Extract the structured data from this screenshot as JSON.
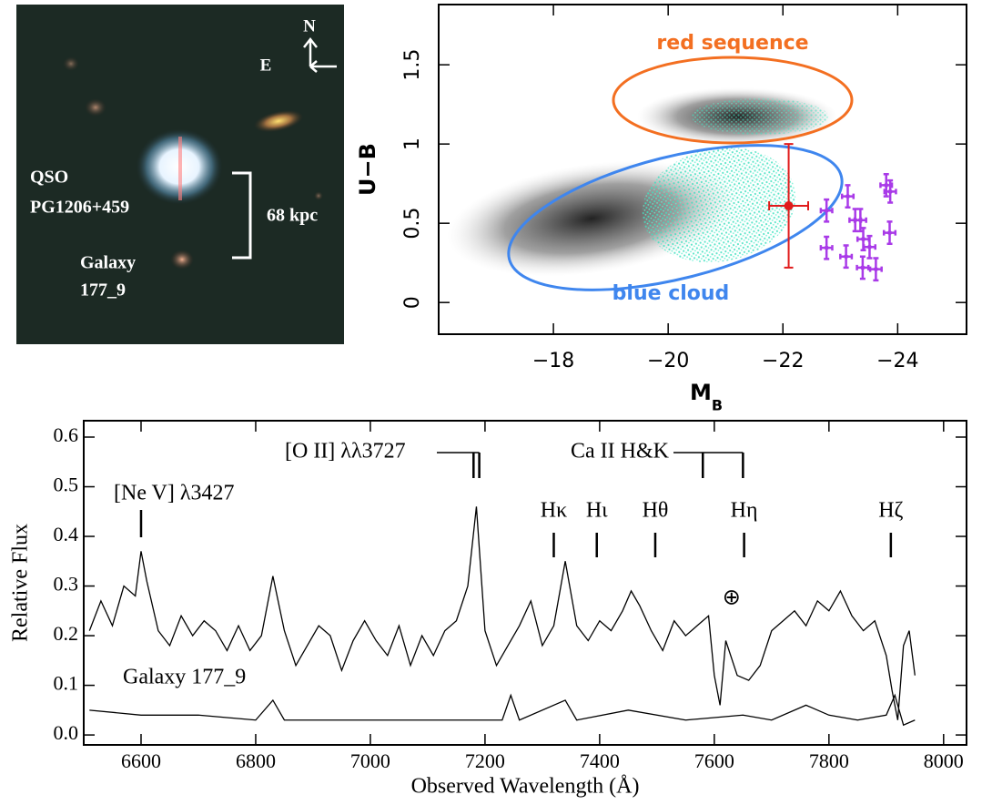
{
  "image_panel": {
    "compass_north": "N",
    "compass_east": "E",
    "qso_label": [
      "QSO",
      "PG1206+459"
    ],
    "scale_label": "68 kpc",
    "galaxy_label": [
      "Galaxy",
      "177_9"
    ]
  },
  "chart_data": [
    {
      "type": "scatter",
      "x_label": "M",
      "x_label_subscript": "B",
      "y_label": "U−B",
      "xlim": [
        -16,
        -25.2
      ],
      "ylim": [
        -0.2,
        1.88
      ],
      "xticks": [
        {
          "value": -18,
          "label": "−18"
        },
        {
          "value": -20,
          "label": "−20"
        },
        {
          "value": -22,
          "label": "−22"
        },
        {
          "value": -24,
          "label": "−24"
        }
      ],
      "yticks": [
        0,
        0.5,
        1,
        1.5
      ],
      "annotations": [
        {
          "text": "red sequence",
          "color": "#f36f21"
        },
        {
          "text": "blue cloud",
          "color": "#3f86ee"
        }
      ],
      "series": [
        {
          "color": "#e01b1b",
          "x": [
            -22.1
          ],
          "values": [
            0.61
          ],
          "xerr": [
            0.34
          ],
          "yerr": [
            0.39
          ]
        },
        {
          "color": "#a93ae8",
          "x": [
            -22.76,
            -22.76,
            -23.1,
            -23.13,
            -23.26,
            -23.35,
            -23.4,
            -23.39,
            -23.51,
            -23.62,
            -23.8,
            -23.87,
            -23.86
          ],
          "values": [
            0.58,
            0.345,
            0.29,
            0.67,
            0.52,
            0.52,
            0.4,
            0.22,
            0.35,
            0.21,
            0.74,
            0.7,
            0.44
          ],
          "xerr": [
            0.1,
            0.1,
            0.1,
            0.1,
            0.1,
            0.1,
            0.1,
            0.1,
            0.1,
            0.1,
            0.1,
            0.1,
            0.1
          ],
          "yerr": [
            0.07,
            0.07,
            0.07,
            0.07,
            0.07,
            0.07,
            0.07,
            0.07,
            0.07,
            0.07,
            0.07,
            0.07,
            0.07
          ]
        }
      ]
    },
    {
      "type": "line",
      "x_label": "Observed Wavelength (Å)",
      "y_label": "Relative Flux",
      "xlim": [
        6500,
        8040
      ],
      "ylim": [
        -0.02,
        0.633
      ],
      "xticks": [
        6600,
        6800,
        7000,
        7200,
        7400,
        7600,
        7800,
        8000
      ],
      "yticks": [
        {
          "value": 0,
          "label": "0.0"
        },
        0.1,
        0.2,
        0.3,
        0.4,
        0.5,
        0.6
      ],
      "annotations": [
        {
          "text": "[Ne V] λ3427",
          "x": 6600
        },
        {
          "text": "[O II] λλ3727",
          "x": [
            7180,
            7190
          ]
        },
        {
          "text": "Ca II H&K",
          "x": [
            7580,
            7650
          ]
        },
        {
          "text": "Hκ",
          "x": 7320
        },
        {
          "text": "Hι",
          "x": 7395
        },
        {
          "text": "Hθ",
          "x": 7497
        },
        {
          "text": "Hη",
          "x": 7652
        },
        {
          "text": "Hζ",
          "x": 7908
        },
        {
          "text": "⊕",
          "x": 7630
        }
      ],
      "series": [
        {
          "color": "#000000",
          "x": [
            6510,
            6530,
            6550,
            6570,
            6590,
            6600,
            6610,
            6630,
            6650,
            6670,
            6690,
            6710,
            6730,
            6750,
            6770,
            6790,
            6810,
            6830,
            6850,
            6870,
            6890,
            6910,
            6930,
            6950,
            6970,
            6990,
            7010,
            7030,
            7050,
            7070,
            7090,
            7110,
            7130,
            7150,
            7170,
            7185,
            7200,
            7220,
            7240,
            7260,
            7280,
            7300,
            7320,
            7340,
            7360,
            7380,
            7400,
            7420,
            7440,
            7455,
            7470,
            7490,
            7510,
            7530,
            7550,
            7570,
            7590,
            7600,
            7610,
            7620,
            7640,
            7660,
            7680,
            7700,
            7720,
            7740,
            7760,
            7780,
            7800,
            7820,
            7840,
            7860,
            7880,
            7900,
            7910,
            7920,
            7930,
            7940,
            7950
          ],
          "values": [
            0.21,
            0.27,
            0.22,
            0.3,
            0.28,
            0.37,
            0.31,
            0.21,
            0.18,
            0.24,
            0.2,
            0.23,
            0.21,
            0.17,
            0.22,
            0.17,
            0.2,
            0.32,
            0.21,
            0.14,
            0.18,
            0.22,
            0.2,
            0.13,
            0.19,
            0.23,
            0.19,
            0.16,
            0.22,
            0.14,
            0.2,
            0.16,
            0.21,
            0.23,
            0.3,
            0.46,
            0.21,
            0.14,
            0.18,
            0.22,
            0.27,
            0.18,
            0.22,
            0.35,
            0.22,
            0.19,
            0.23,
            0.21,
            0.25,
            0.29,
            0.26,
            0.21,
            0.17,
            0.23,
            0.2,
            0.22,
            0.24,
            0.12,
            0.06,
            0.19,
            0.12,
            0.11,
            0.14,
            0.21,
            0.23,
            0.25,
            0.22,
            0.27,
            0.25,
            0.29,
            0.24,
            0.21,
            0.23,
            0.16,
            0.09,
            0.03,
            0.18,
            0.21,
            0.12
          ]
        },
        {
          "name": "Galaxy 177_9",
          "color": "#000000",
          "x": [
            6510,
            6600,
            6700,
            6800,
            6830,
            6850,
            6950,
            7050,
            7150,
            7230,
            7245,
            7260,
            7340,
            7360,
            7450,
            7550,
            7650,
            7700,
            7760,
            7800,
            7850,
            7900,
            7915,
            7930,
            7950
          ],
          "values": [
            0.05,
            0.04,
            0.04,
            0.03,
            0.07,
            0.03,
            0.03,
            0.03,
            0.03,
            0.03,
            0.08,
            0.03,
            0.07,
            0.03,
            0.05,
            0.03,
            0.04,
            0.03,
            0.06,
            0.04,
            0.03,
            0.04,
            0.08,
            0.02,
            0.03
          ]
        }
      ]
    }
  ]
}
